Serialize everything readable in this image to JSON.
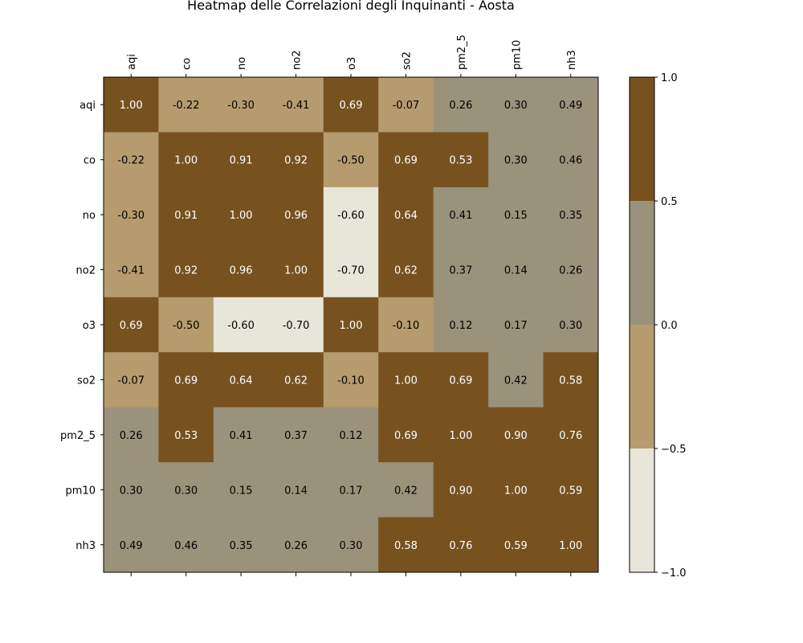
{
  "chart_data": {
    "type": "heatmap",
    "title": "Heatmap delle Correlazioni degli Inquinanti - Aosta",
    "labels": [
      "aqi",
      "co",
      "no",
      "no2",
      "o3",
      "so2",
      "pm2_5",
      "pm10",
      "nh3"
    ],
    "matrix": [
      [
        1.0,
        -0.22,
        -0.3,
        -0.41,
        0.69,
        -0.07,
        0.26,
        0.3,
        0.49
      ],
      [
        -0.22,
        1.0,
        0.91,
        0.92,
        -0.5,
        0.69,
        0.53,
        0.3,
        0.46
      ],
      [
        -0.3,
        0.91,
        1.0,
        0.96,
        -0.6,
        0.64,
        0.41,
        0.15,
        0.35
      ],
      [
        -0.41,
        0.92,
        0.96,
        1.0,
        -0.7,
        0.62,
        0.37,
        0.14,
        0.26
      ],
      [
        0.69,
        -0.5,
        -0.6,
        -0.7,
        1.0,
        -0.1,
        0.12,
        0.17,
        0.3
      ],
      [
        -0.07,
        0.69,
        0.64,
        0.62,
        -0.1,
        1.0,
        0.69,
        0.42,
        0.58
      ],
      [
        0.26,
        0.53,
        0.41,
        0.37,
        0.12,
        0.69,
        1.0,
        0.9,
        0.76
      ],
      [
        0.3,
        0.3,
        0.15,
        0.14,
        0.17,
        0.42,
        0.9,
        1.0,
        0.59
      ],
      [
        0.49,
        0.46,
        0.35,
        0.26,
        0.3,
        0.58,
        0.76,
        0.59,
        1.0
      ]
    ],
    "value_format": "2 decimals",
    "colorbar": {
      "range": [
        -1.0,
        1.0
      ],
      "ticks": [
        1.0,
        0.5,
        0.0,
        -0.5,
        -1.0
      ],
      "tick_labels": [
        "1.0",
        "0.5",
        "0.0",
        "−0.5",
        "−1.0"
      ],
      "bins": [
        {
          "from": -1.0,
          "to": -0.5,
          "color": "#e8e6d9"
        },
        {
          "from": -0.5,
          "to": 0.0,
          "color": "#b59b6d"
        },
        {
          "from": 0.0,
          "to": 0.5,
          "color": "#9a927b"
        },
        {
          "from": 0.5,
          "to": 1.0,
          "color": "#77521f"
        }
      ]
    },
    "x_tick_position": "top",
    "y_tick_position": "left",
    "grid": false
  }
}
